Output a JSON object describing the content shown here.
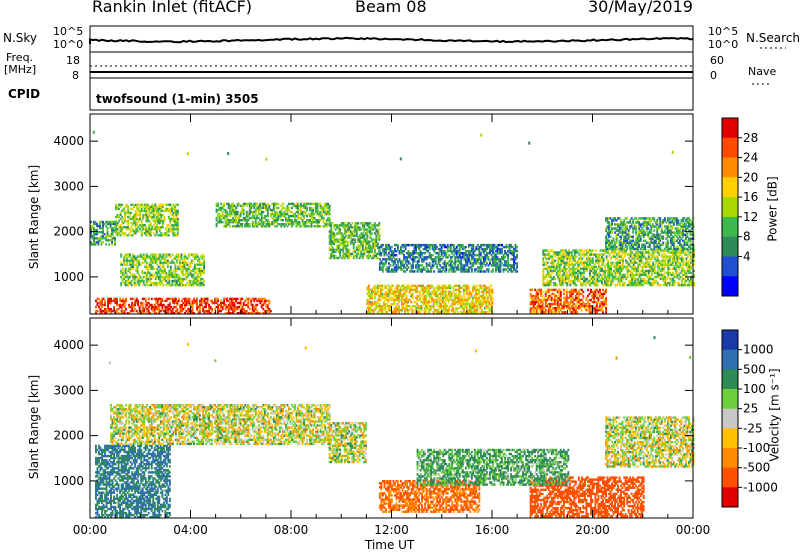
{
  "header": {
    "station": "Rankin Inlet (fitACF)",
    "beam": "Beam 08",
    "date": "30/May/2019"
  },
  "summary": {
    "nsky_label": "N.Sky",
    "nsearch_label": "N.Search",
    "freq_label_1": "Freq.",
    "freq_label_2": "[MHz]",
    "nave_label": "Nave",
    "cpid_label": "CPID",
    "cpid_text": "twofsound (1-min) 3505",
    "noise_ticks_left": [
      "10^5",
      "10^0"
    ],
    "noise_ticks_right": [
      "10^5",
      "10^0"
    ],
    "freq_ticks": [
      "18",
      "8"
    ],
    "nave_ticks": [
      "60",
      "0"
    ]
  },
  "axes": {
    "xlabel": "Time UT",
    "ylabel": "Slant Range [km]",
    "xticks": [
      "00:00",
      "04:00",
      "08:00",
      "12:00",
      "16:00",
      "20:00",
      "00:00"
    ],
    "yticks": [
      "1000",
      "2000",
      "3000",
      "4000"
    ]
  },
  "power_bar": {
    "label": "Power [dB]",
    "ticks": [
      "28",
      "24",
      "20",
      "16",
      "12",
      "8",
      "4"
    ],
    "colors": [
      "#e00000",
      "#ff4a00",
      "#ff8c00",
      "#ffd000",
      "#a8d800",
      "#3cb84c",
      "#2e8b57",
      "#2050d0",
      "#0000ff"
    ]
  },
  "velocity_bar": {
    "label": "Velocity [m s⁻¹]",
    "ticks": [
      "1000",
      "500",
      "100",
      "25",
      "-25",
      "-100",
      "-500",
      "-1000"
    ],
    "colors": [
      "#1a3aa8",
      "#2e6fb0",
      "#2e8b57",
      "#6ccf3c",
      "#c8c8c8",
      "#ffc000",
      "#ff8c00",
      "#ff5000",
      "#e00000"
    ]
  },
  "chart_data": {
    "type": "heatmap",
    "title": "Rankin Inlet (fitACF)",
    "xlabel": "Time UT",
    "ylabel": "Slant Range [km]",
    "xlim": [
      "00:00",
      "24:00"
    ],
    "ylim": [
      180,
      4600
    ],
    "power_scale": [
      0,
      30
    ],
    "velocity_scale": [
      -1000,
      1000
    ],
    "power_regions": [
      {
        "t": [
          0.2,
          7.2
        ],
        "r": [
          180,
          500
        ],
        "level": 26
      },
      {
        "t": [
          1.0,
          3.5
        ],
        "r": [
          1900,
          2600
        ],
        "level": 14
      },
      {
        "t": [
          5.0,
          9.5
        ],
        "r": [
          2100,
          2600
        ],
        "level": 12
      },
      {
        "t": [
          9.5,
          11.5
        ],
        "r": [
          1400,
          2200
        ],
        "level": 12
      },
      {
        "t": [
          0.0,
          1.0
        ],
        "r": [
          1700,
          2200
        ],
        "level": 10
      },
      {
        "t": [
          1.2,
          4.5
        ],
        "r": [
          800,
          1500
        ],
        "level": 14
      },
      {
        "t": [
          11.0,
          16.0
        ],
        "r": [
          200,
          800
        ],
        "level": 18
      },
      {
        "t": [
          11.5,
          17.0
        ],
        "r": [
          1100,
          1700
        ],
        "level": 8
      },
      {
        "t": [
          17.5,
          20.5
        ],
        "r": [
          200,
          700
        ],
        "level": 24
      },
      {
        "t": [
          18.0,
          24.0
        ],
        "r": [
          800,
          1600
        ],
        "level": 14
      },
      {
        "t": [
          20.5,
          24.0
        ],
        "r": [
          1600,
          2300
        ],
        "level": 10
      }
    ],
    "velocity_regions": [
      {
        "t": [
          0.2,
          3.2
        ],
        "r": [
          180,
          1800
        ],
        "value": 300
      },
      {
        "t": [
          0.8,
          9.5
        ],
        "r": [
          1800,
          2700
        ],
        "value": 0
      },
      {
        "t": [
          9.5,
          11.0
        ],
        "r": [
          1400,
          2300
        ],
        "value": 0
      },
      {
        "t": [
          11.5,
          15.5
        ],
        "r": [
          300,
          1000
        ],
        "value": -300
      },
      {
        "t": [
          17.5,
          22.0
        ],
        "r": [
          200,
          1100
        ],
        "value": -400
      },
      {
        "t": [
          20.5,
          24.0
        ],
        "r": [
          1300,
          2400
        ],
        "value": 0
      },
      {
        "t": [
          13.0,
          19.0
        ],
        "r": [
          900,
          1700
        ],
        "value": 80
      }
    ]
  }
}
